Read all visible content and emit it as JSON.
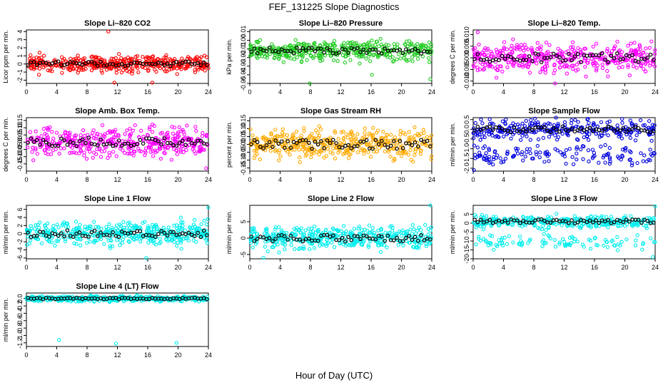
{
  "figure": {
    "title": "FEF_131225  Slope Diagnostics",
    "xlabel": "Hour of Day (UTC)"
  },
  "chart_data": [
    {
      "type": "scatter",
      "title": "Slope Li–820 CO2",
      "ylabel": "Licor ppm per min.",
      "xlim": [
        0,
        24
      ],
      "ylim": [
        -2.4,
        4.2
      ],
      "x_ticks": [
        0,
        4,
        8,
        12,
        16,
        20,
        24
      ],
      "y_ticks": [
        -2,
        -1,
        0,
        1,
        2,
        3,
        4
      ],
      "y_tick_labels": [
        "-2",
        "-1",
        "0",
        "1",
        "2",
        "3",
        "4"
      ],
      "color": "#ff0000",
      "center": 0,
      "spread": 0.7,
      "outliers": [
        {
          "x": 10.8,
          "y": 4.0
        },
        {
          "x": 11.6,
          "y": -2.3
        },
        {
          "x": 16.6,
          "y": -2.3
        }
      ],
      "seed": 11
    },
    {
      "type": "scatter",
      "title": "Slope Li–820 Pressure",
      "ylabel": "kPa per min.",
      "xlim": [
        0,
        24
      ],
      "ylim": [
        -0.05,
        0.012
      ],
      "x_ticks": [
        0,
        4,
        8,
        12,
        16,
        20,
        24
      ],
      "y_ticks": [
        -0.05,
        -0.04,
        -0.03,
        -0.02,
        -0.01,
        0.0,
        0.01
      ],
      "y_tick_labels": [
        "-0.05",
        "-0.04",
        "-0.03",
        "-0.02",
        "-0.01",
        "0.00",
        "0.01"
      ],
      "color": "#22cc22",
      "center": -0.012,
      "spread": 0.008,
      "outliers": [
        {
          "x": 16.1,
          "y": -0.04
        },
        {
          "x": 23.8,
          "y": -0.045
        },
        {
          "x": 7.9,
          "y": -0.05
        }
      ],
      "seed": 22
    },
    {
      "type": "scatter",
      "title": "Slope Li–820 Temp.",
      "ylabel": "degrees C per min.",
      "xlim": [
        0,
        24
      ],
      "ylim": [
        -0.011,
        0.012
      ],
      "x_ticks": [
        0,
        4,
        8,
        12,
        16,
        20,
        24
      ],
      "y_ticks": [
        -0.01,
        -0.005,
        0.0,
        0.005,
        0.01
      ],
      "y_tick_labels": [
        "-0.010",
        "-0.005",
        "0.000",
        "0.005",
        "0.010"
      ],
      "color": "#ff00ff",
      "center": 0.0,
      "spread": 0.0045,
      "outliers": [
        {
          "x": 0.6,
          "y": 0.011
        },
        {
          "x": 10.8,
          "y": -0.011
        }
      ],
      "seed": 33
    },
    {
      "type": "scatter",
      "title": "Slope Amb. Box Temp.",
      "ylabel": "degrees C per min.",
      "xlim": [
        0,
        24
      ],
      "ylim": [
        -0.2,
        0.17
      ],
      "x_ticks": [
        0,
        4,
        8,
        12,
        16,
        20,
        24
      ],
      "y_ticks": [
        -0.15,
        -0.1,
        -0.05,
        0.0,
        0.05,
        0.1,
        0.15
      ],
      "y_tick_labels": [
        "-0.15",
        "-0.10",
        "-0.05",
        "0.00",
        "0.05",
        "0.10",
        "0.15"
      ],
      "color": "#ff00ff",
      "center": 0.0,
      "spread": 0.07,
      "outliers": [
        {
          "x": 23.7,
          "y": -0.18
        }
      ],
      "seed": 44
    },
    {
      "type": "scatter",
      "title": "Slope Gas Stream RH",
      "ylabel": "percent per min.",
      "xlim": [
        0,
        24
      ],
      "ylim": [
        -0.17,
        0.17
      ],
      "x_ticks": [
        0,
        4,
        8,
        12,
        16,
        20,
        24
      ],
      "y_ticks": [
        -0.15,
        -0.1,
        -0.05,
        0.0,
        0.05,
        0.1,
        0.15
      ],
      "y_tick_labels": [
        "-0.15",
        "-0.10",
        "-0.05",
        "0.00",
        "0.05",
        "0.10",
        "0.15"
      ],
      "color": "#ffaa00",
      "center": 0.0,
      "spread": 0.065,
      "outliers": [],
      "seed": 55
    },
    {
      "type": "scatter",
      "title": "Slope Sample Flow",
      "ylabel": "ml/min per min.",
      "xlim": [
        0,
        24
      ],
      "ylim": [
        -2.15,
        0.6
      ],
      "x_ticks": [
        0,
        4,
        8,
        12,
        16,
        20,
        24
      ],
      "y_ticks": [
        -2,
        -1.5,
        -1,
        -0.5,
        0,
        0.5
      ],
      "y_tick_labels": [
        "-2.0",
        "-1.5",
        "-1.0",
        "-0.5",
        "0.0",
        "0.5"
      ],
      "color": "#0000dd",
      "center": 0.0,
      "spread": 0.35,
      "lowband": -1.3,
      "outliers": [
        {
          "x": 0.1,
          "y": -2.1
        }
      ],
      "seed": 66
    },
    {
      "type": "scatter",
      "title": "Slope Line 1 Flow",
      "ylabel": "ml/min per min.",
      "xlim": [
        0,
        24
      ],
      "ylim": [
        -6.2,
        7
      ],
      "x_ticks": [
        0,
        4,
        8,
        12,
        16,
        20,
        24
      ],
      "y_ticks": [
        -6,
        -4,
        -2,
        0,
        2,
        4,
        6
      ],
      "y_tick_labels": [
        "-6",
        "-4",
        "-2",
        "0",
        "2",
        "4",
        "6"
      ],
      "color": "#00eeee",
      "center": 0.0,
      "spread": 2.0,
      "outliers": [
        {
          "x": 15.8,
          "y": -6.0
        },
        {
          "x": 24.0,
          "y": 6.5
        }
      ],
      "seed": 77
    },
    {
      "type": "scatter",
      "title": "Slope Line 2 Flow",
      "ylabel": "ml/min per min.",
      "xlim": [
        0,
        24
      ],
      "ylim": [
        -6.3,
        10
      ],
      "x_ticks": [
        0,
        4,
        8,
        12,
        16,
        20,
        24
      ],
      "y_ticks": [
        -5,
        0,
        5
      ],
      "y_tick_labels": [
        "-5",
        "0",
        "5"
      ],
      "color": "#00eeee",
      "center": 0.0,
      "spread": 2.3,
      "outliers": [
        {
          "x": 1.8,
          "y": -6.0
        },
        {
          "x": 23.8,
          "y": 10.0
        }
      ],
      "seed": 88
    },
    {
      "type": "scatter",
      "title": "Slope Line 3 Flow",
      "ylabel": "ml/min per min.",
      "xlim": [
        0,
        24
      ],
      "ylim": [
        -20,
        10
      ],
      "x_ticks": [
        0,
        4,
        8,
        12,
        16,
        20,
        24
      ],
      "y_ticks": [
        -20,
        -15,
        -10,
        -5,
        0,
        5
      ],
      "y_tick_labels": [
        "-20",
        "-15",
        "-10",
        "-5",
        "0",
        "5"
      ],
      "color": "#00eeee",
      "center": 1.0,
      "spread": 2.5,
      "lowband": -11,
      "outliers": [
        {
          "x": 24.0,
          "y": 9.5
        },
        {
          "x": 23.7,
          "y": -19
        }
      ],
      "seed": 99
    },
    {
      "type": "scatter",
      "title": "Slope Line 4 (LT) Flow",
      "ylabel": "ml/min per min.",
      "xlim": [
        0,
        24
      ],
      "ylim": [
        -1.3,
        0.15
      ],
      "x_ticks": [
        0,
        4,
        8,
        12,
        16,
        20,
        24
      ],
      "y_ticks": [
        -1.2,
        -1.0,
        -0.8,
        -0.6,
        -0.4,
        -0.2,
        0.0
      ],
      "y_tick_labels": [
        "-1.2",
        "-1.0",
        "-0.8",
        "-0.6",
        "-0.4",
        "-0.2",
        "0.0"
      ],
      "color": "#00eeee",
      "center": 0.0,
      "spread": 0.05,
      "outliers": [
        {
          "x": 4.3,
          "y": -1.12
        },
        {
          "x": 11.8,
          "y": -1.22
        },
        {
          "x": 19.8,
          "y": -1.2
        }
      ],
      "seed": 111
    }
  ]
}
